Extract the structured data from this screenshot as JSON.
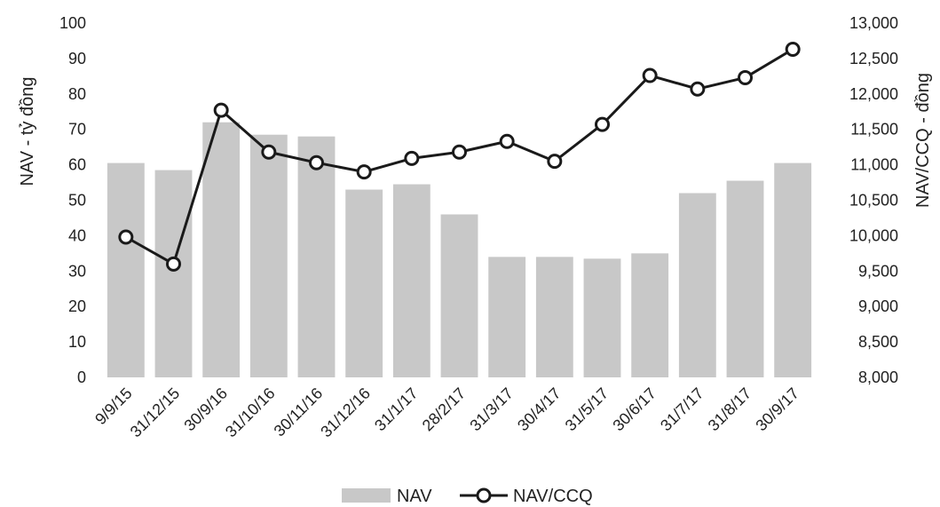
{
  "chart_data": {
    "type": "bar",
    "categories": [
      "9/9/15",
      "31/12/15",
      "30/9/16",
      "31/10/16",
      "30/11/16",
      "31/12/16",
      "31/1/17",
      "28/2/17",
      "31/3/17",
      "30/4/17",
      "31/5/17",
      "30/6/17",
      "31/7/17",
      "31/8/17",
      "30/9/17"
    ],
    "series": [
      {
        "name": "NAV",
        "type": "bar",
        "axis": "left",
        "color": "#c8c8c8",
        "values": [
          60.5,
          58.5,
          72,
          68.5,
          68,
          53,
          54.5,
          46,
          34,
          34,
          33.5,
          35,
          52,
          55.5,
          60.5
        ]
      },
      {
        "name": "NAV/CCQ",
        "type": "line",
        "axis": "right",
        "color": "#1a1a1a",
        "values": [
          9980,
          9600,
          11770,
          11180,
          11030,
          10900,
          11090,
          11180,
          11330,
          11050,
          11570,
          12260,
          12070,
          12230,
          12630
        ]
      }
    ],
    "ylabel_left": "NAV - tỷ đồng",
    "ylabel_right": "NAV/CCQ - đồng",
    "ylim_left": [
      0,
      100
    ],
    "ylim_right": [
      8000,
      13000
    ],
    "yticks_left": [
      "0",
      "10",
      "20",
      "30",
      "40",
      "50",
      "60",
      "70",
      "80",
      "90",
      "100"
    ],
    "yticks_right": [
      "8,000",
      "8,500",
      "9,000",
      "9,500",
      "10,000",
      "10,500",
      "11,000",
      "11,500",
      "12,000",
      "12,500",
      "13,000"
    ],
    "grid": false,
    "legend_position": "bottom"
  }
}
